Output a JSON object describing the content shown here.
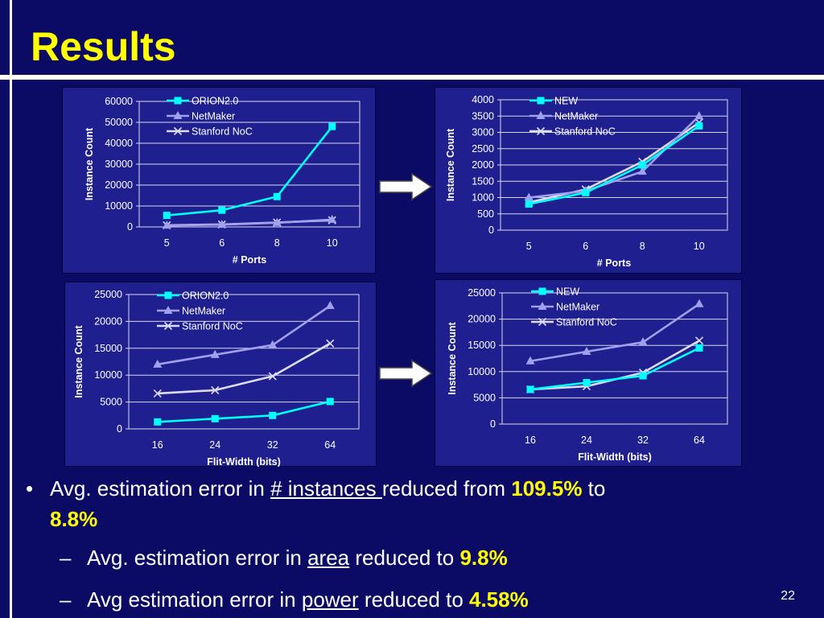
{
  "slide": {
    "title": "Results",
    "page_number": "22",
    "bullets": {
      "main": {
        "pre": "Avg. estimation error in ",
        "link": "# instances ",
        "mid": "reduced from ",
        "from": "109.5%",
        "to_word": " to",
        "to": "8.8%"
      },
      "sub1": {
        "pre": "Avg. estimation error in ",
        "link": "area",
        "mid": " reduced to ",
        "value": "9.8%"
      },
      "sub2": {
        "pre": "Avg estimation error in ",
        "link": "power",
        "mid": " reduced to ",
        "value": "4.58%"
      }
    }
  },
  "colors": {
    "background": "#0b0b66",
    "chart_panel": "#1f1f8f",
    "title": "#ffff00",
    "series_primary": "#00ffff",
    "series_netmaker": "#a0a0ee",
    "series_stanford": "#dcdcf4"
  },
  "chart_data": [
    {
      "id": "ports-before",
      "type": "line",
      "xlabel": "# Ports",
      "ylabel": "Instance Count",
      "categories": [
        "5",
        "6",
        "8",
        "10"
      ],
      "ylim": [
        0,
        60000
      ],
      "yticks": [
        "0",
        "10000",
        "20000",
        "30000",
        "40000",
        "50000",
        "60000"
      ],
      "grid": true,
      "legend_position": "top-left",
      "series": [
        {
          "name": "ORION2.0",
          "marker": "square",
          "color": "#00ffff",
          "values": [
            5500,
            8000,
            14500,
            48000
          ]
        },
        {
          "name": "NetMaker",
          "marker": "triangle",
          "color": "#a0a0ee",
          "values": [
            700,
            1100,
            2000,
            3500
          ]
        },
        {
          "name": "Stanford NoC",
          "marker": "x",
          "color": "#dcdcf4",
          "values": [
            800,
            1200,
            2100,
            3200
          ]
        }
      ]
    },
    {
      "id": "ports-after",
      "type": "line",
      "xlabel": "# Ports",
      "ylabel": "Instance Count",
      "categories": [
        "5",
        "6",
        "8",
        "10"
      ],
      "ylim": [
        0,
        4000
      ],
      "yticks": [
        "0",
        "500",
        "1000",
        "1500",
        "2000",
        "2500",
        "3000",
        "3500",
        "4000"
      ],
      "grid": true,
      "legend_position": "top-left",
      "series": [
        {
          "name": "NEW",
          "marker": "square",
          "color": "#00ffff",
          "values": [
            800,
            1150,
            2000,
            3200
          ]
        },
        {
          "name": "NetMaker",
          "marker": "triangle",
          "color": "#a0a0ee",
          "values": [
            1000,
            1200,
            1800,
            3500
          ]
        },
        {
          "name": "Stanford NoC",
          "marker": "x",
          "color": "#dcdcf4",
          "values": [
            850,
            1250,
            2100,
            3300
          ]
        }
      ]
    },
    {
      "id": "flit-before",
      "type": "line",
      "xlabel": "Flit-Width (bits)",
      "ylabel": "Instance Count",
      "categories": [
        "16",
        "24",
        "32",
        "64"
      ],
      "ylim": [
        0,
        25000
      ],
      "yticks": [
        "0",
        "5000",
        "10000",
        "15000",
        "20000",
        "25000"
      ],
      "grid": true,
      "legend_position": "top-left",
      "series": [
        {
          "name": "ORION2.0",
          "marker": "square",
          "color": "#00ffff",
          "values": [
            1300,
            1900,
            2500,
            5100
          ]
        },
        {
          "name": "NetMaker",
          "marker": "triangle",
          "color": "#a0a0ee",
          "values": [
            12000,
            13800,
            15600,
            22900
          ]
        },
        {
          "name": "Stanford NoC",
          "marker": "x",
          "color": "#dcdcf4",
          "values": [
            6600,
            7200,
            9800,
            15900
          ]
        }
      ]
    },
    {
      "id": "flit-after",
      "type": "line",
      "xlabel": "Flit-Width (bits)",
      "ylabel": "Instance Count",
      "categories": [
        "16",
        "24",
        "32",
        "64"
      ],
      "ylim": [
        0,
        25000
      ],
      "yticks": [
        "0",
        "5000",
        "10000",
        "15000",
        "20000",
        "25000"
      ],
      "grid": true,
      "legend_position": "top-left",
      "series": [
        {
          "name": "NEW",
          "marker": "square",
          "color": "#00ffff",
          "values": [
            6600,
            7900,
            9200,
            14500
          ]
        },
        {
          "name": "NetMaker",
          "marker": "triangle",
          "color": "#a0a0ee",
          "values": [
            12000,
            13800,
            15600,
            22900
          ]
        },
        {
          "name": "Stanford NoC",
          "marker": "x",
          "color": "#dcdcf4",
          "values": [
            6600,
            7200,
            9800,
            15900
          ]
        }
      ]
    }
  ]
}
